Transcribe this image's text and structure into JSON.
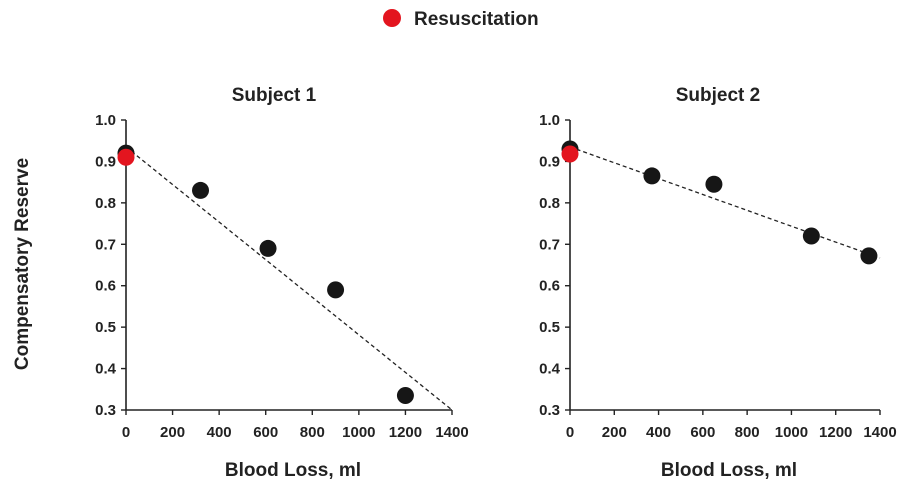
{
  "legend": {
    "label": "Resuscitation",
    "color": "#e3151f"
  },
  "colors": {
    "point": "#161616",
    "resuscitation": "#e3151f",
    "axis": "#222222",
    "trend": "#222222"
  },
  "chart_data": [
    {
      "type": "scatter",
      "title": "Subject 1",
      "xlabel": "Blood Loss, ml",
      "ylabel": "Compensatory Reserve",
      "xlim": [
        0,
        1400
      ],
      "ylim": [
        0.3,
        1.0
      ],
      "x_ticks": [
        "0",
        "200",
        "400",
        "600",
        "800",
        "1000",
        "1200",
        "1400"
      ],
      "y_ticks": [
        "1.0",
        "0.9",
        "0.8",
        "0.7",
        "0.6",
        "0.5",
        "0.4",
        "0.3"
      ],
      "series": [
        {
          "points": [
            [
              0,
              0.92
            ],
            [
              320,
              0.83
            ],
            [
              610,
              0.69
            ],
            [
              900,
              0.59
            ],
            [
              1200,
              0.335
            ]
          ]
        },
        {
          "name": "Resuscitation",
          "points": [
            [
              0,
              0.91
            ]
          ]
        }
      ],
      "trendline": {
        "style": "dashed",
        "from": [
          0,
          0.935
        ],
        "to": [
          1400,
          0.3
        ]
      },
      "grid": false
    },
    {
      "type": "scatter",
      "title": "Subject 2",
      "xlabel": "Blood Loss, ml",
      "ylabel": "",
      "xlim": [
        0,
        1400
      ],
      "ylim": [
        0.3,
        1.0
      ],
      "x_ticks": [
        "0",
        "200",
        "400",
        "600",
        "800",
        "1000",
        "1200",
        "1400"
      ],
      "y_ticks": [
        "1.0",
        "0.9",
        "0.8",
        "0.7",
        "0.6",
        "0.5",
        "0.4",
        "0.3"
      ],
      "series": [
        {
          "points": [
            [
              0,
              0.93
            ],
            [
              370,
              0.865
            ],
            [
              650,
              0.845
            ],
            [
              1090,
              0.72
            ],
            [
              1350,
              0.672
            ]
          ]
        },
        {
          "name": "Resuscitation",
          "points": [
            [
              0,
              0.918
            ]
          ]
        }
      ],
      "trendline": {
        "style": "dashed",
        "from": [
          0,
          0.935
        ],
        "to": [
          1400,
          0.667
        ]
      },
      "grid": false
    }
  ]
}
